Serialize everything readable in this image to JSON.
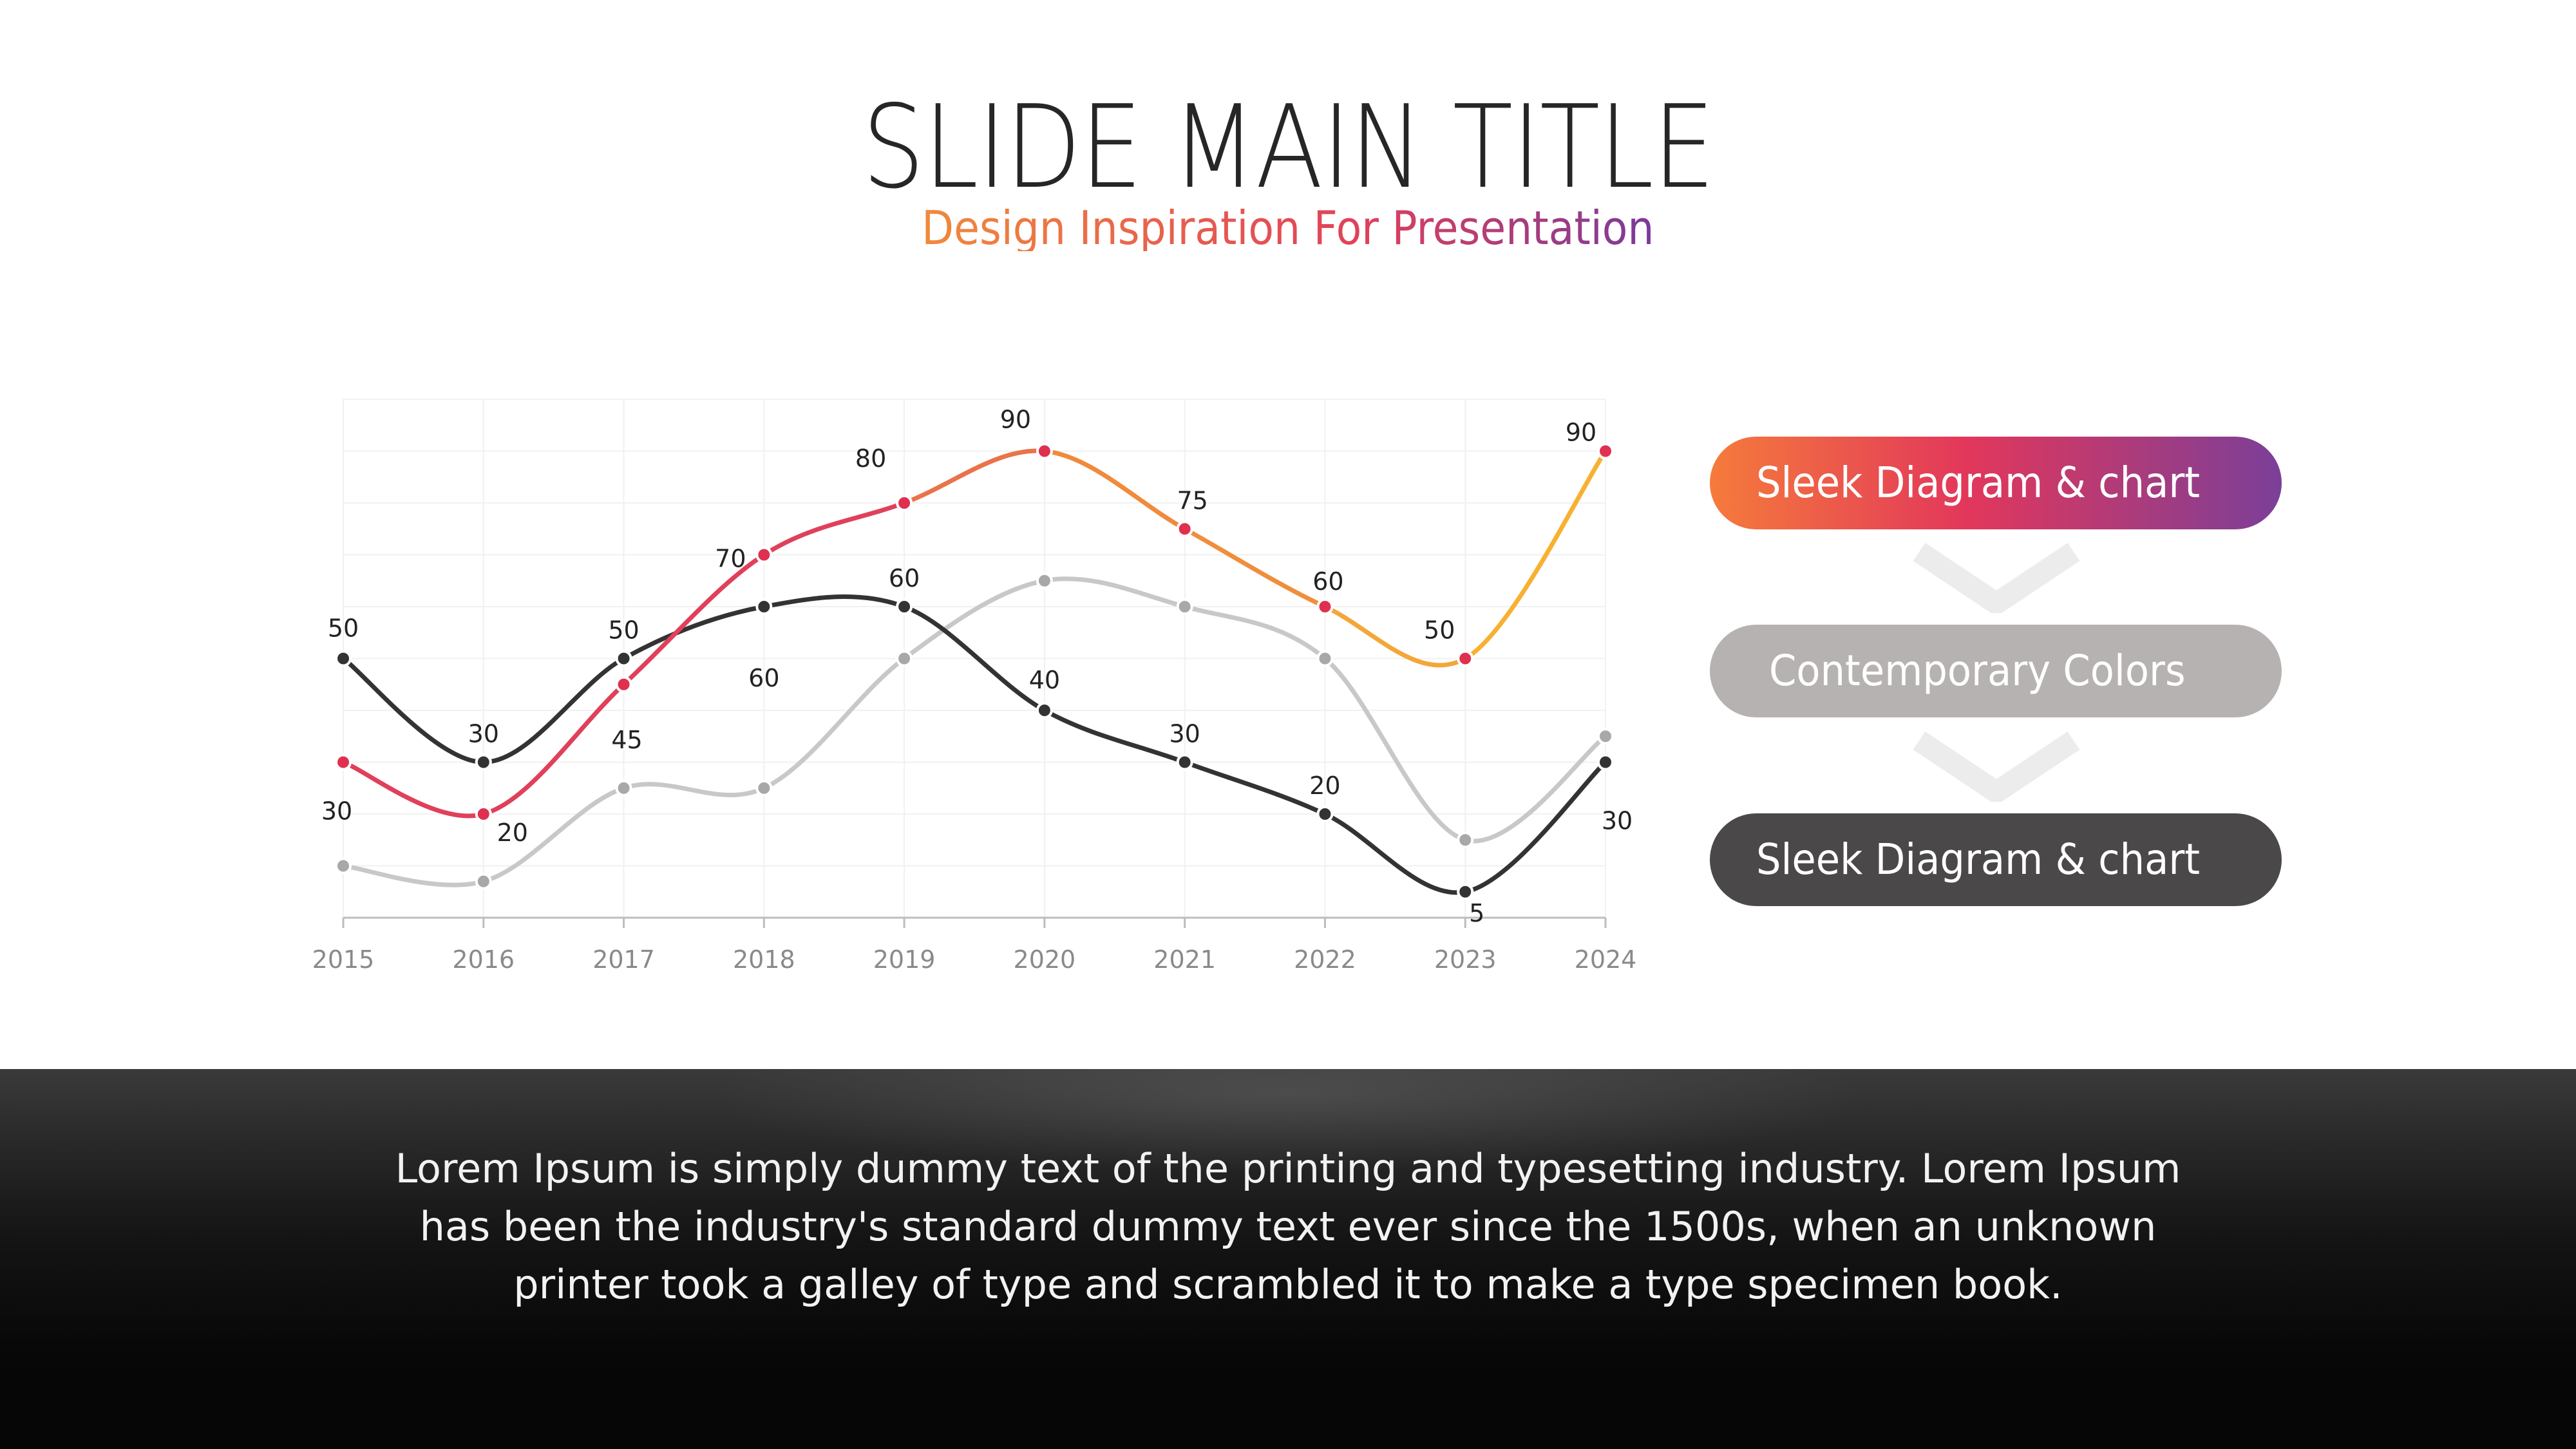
{
  "header": {
    "title": "SLIDE MAIN TITLE",
    "subtitle": "Design Inspiration For Presentation"
  },
  "chart_data": {
    "type": "line",
    "x": [
      "2015",
      "2016",
      "2017",
      "2018",
      "2019",
      "2020",
      "2021",
      "2022",
      "2023",
      "2024"
    ],
    "ylim": [
      0,
      100
    ],
    "grid": true,
    "series": [
      {
        "color": "#e0405a",
        "colors": [
          "#e0405a",
          "#e0405a",
          "#e0405a",
          "#e0405a",
          "#e8744a",
          "#f08a3c",
          "#ef8e3c",
          "#f3a73a",
          "#f7b132",
          "#f7b132"
        ],
        "values": [
          30,
          20,
          45,
          70,
          80,
          90,
          75,
          60,
          50,
          90
        ],
        "labels": [
          "30",
          "20",
          "45",
          "70",
          "80",
          "90",
          "75",
          "60",
          "50",
          "90"
        ]
      },
      {
        "color": "#333333",
        "values": [
          50,
          30,
          50,
          60,
          60,
          40,
          30,
          20,
          5,
          30
        ],
        "labels": [
          "50",
          "30",
          "50",
          "60",
          "60",
          "40",
          "30",
          "20",
          "5",
          "30"
        ]
      },
      {
        "color": "#c8c8c8",
        "values": [
          10,
          7,
          25,
          25,
          50,
          65,
          60,
          50,
          15,
          35
        ],
        "labels": []
      }
    ]
  },
  "steps": [
    {
      "label": "Sleek Diagram & chart",
      "color": "#e2375b"
    },
    {
      "label": "Contemporary Colors",
      "color": "#b7b2b2"
    },
    {
      "label": "Sleek Diagram & chart",
      "color": "#4a4848"
    }
  ],
  "footer": {
    "text": "Lorem Ipsum is simply dummy text of the printing and typesetting industry. Lorem Ipsum has been the industry's standard dummy text ever since the 1500s, when an unknown printer took a galley of type and scrambled it to make a type specimen book."
  }
}
